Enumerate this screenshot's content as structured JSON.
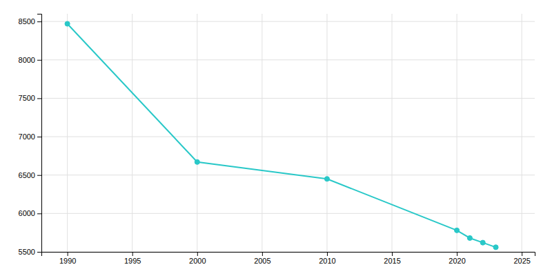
{
  "chart_data": {
    "type": "line",
    "x": [
      1990,
      2000,
      2010,
      2020,
      2021,
      2022,
      2023
    ],
    "values": [
      8470,
      6670,
      6450,
      5780,
      5680,
      5620,
      5560
    ],
    "color": "#29c8c8",
    "marker": "circle",
    "xlim": [
      1988,
      2026
    ],
    "ylim": [
      5500,
      8600
    ],
    "xticks": [
      1990,
      1995,
      2000,
      2005,
      2010,
      2015,
      2020,
      2025
    ],
    "yticks": [
      5500,
      6000,
      6500,
      7000,
      7500,
      8000,
      8500
    ],
    "grid": true
  }
}
